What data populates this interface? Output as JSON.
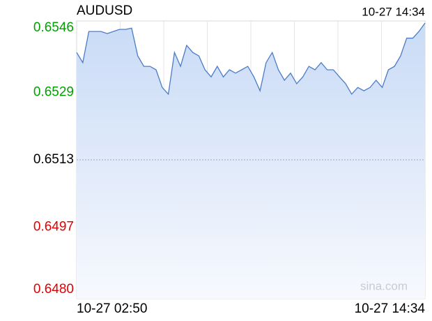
{
  "chart_data": {
    "type": "line",
    "title": "AUDUSD",
    "time_label": "10-27 14:34",
    "watermark": "sina.com",
    "categories": [
      "10-27 02:50",
      null,
      null,
      null,
      null,
      null,
      null,
      null,
      null,
      null,
      null,
      null,
      null,
      null,
      null,
      null,
      null,
      null,
      null,
      null,
      null,
      null,
      null,
      null,
      null,
      null,
      null,
      null,
      null,
      null,
      null,
      null,
      null,
      null,
      null,
      null,
      null,
      null,
      null,
      null,
      null,
      null,
      null,
      null,
      null,
      null,
      null,
      null,
      null,
      null,
      null,
      null,
      null,
      null,
      null,
      null,
      null,
      "10-27 14:34"
    ],
    "values": [
      0.65385,
      0.65361,
      0.65435,
      0.65435,
      0.65435,
      0.6543,
      0.65435,
      0.6544,
      0.6544,
      0.65443,
      0.65377,
      0.65352,
      0.65352,
      0.65344,
      0.65302,
      0.65286,
      0.65385,
      0.65352,
      0.65402,
      0.65385,
      0.65377,
      0.65344,
      0.65327,
      0.65352,
      0.65327,
      0.65344,
      0.65336,
      0.65344,
      0.65352,
      0.65327,
      0.65294,
      0.65361,
      0.65385,
      0.65344,
      0.65319,
      0.65336,
      0.65311,
      0.65327,
      0.65352,
      0.65344,
      0.65361,
      0.65344,
      0.65344,
      0.65327,
      0.65311,
      0.65286,
      0.65302,
      0.65294,
      0.65302,
      0.65319,
      0.65302,
      0.65344,
      0.65352,
      0.65377,
      0.65419,
      0.65419,
      0.65435,
      0.65455
    ],
    "color": "#4a7cc7",
    "ylim": [
      0.648,
      0.6546
    ],
    "yticks": [
      {
        "value": 0.648,
        "label": "0.6480"
      },
      0.6497,
      0.6513,
      0.6529,
      0.6546
    ],
    "ytick_colors": [
      "#e00000",
      "#e00000",
      "#000000",
      "#00a000",
      "#00a000"
    ],
    "ref_line": 0.6513
  }
}
